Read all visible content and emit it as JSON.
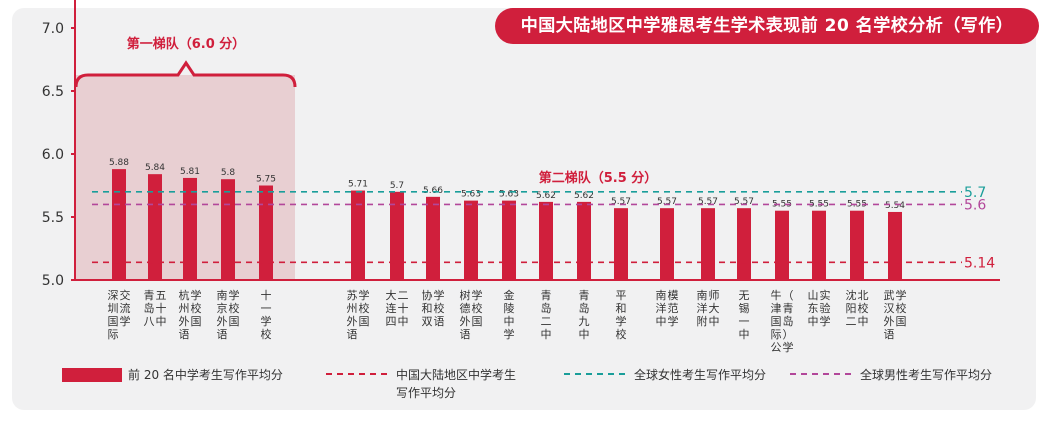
{
  "title": "中国大陆地区中学雅思考生学术表现前 20 名学校分析（写作）",
  "tier1_label": "第一梯队（6.0 分）",
  "tier2_label": "第二梯队（5.5 分）",
  "colors": {
    "bar": "#d01f3c",
    "tier1_fill": "#e6c9cc",
    "accent": "#d01f3c",
    "mainland": "#d01f3c",
    "female": "#1a9e9a",
    "male": "#b2479a",
    "axis": "#d01f3c"
  },
  "chart_data": {
    "type": "bar",
    "ylim": [
      5.0,
      8.0
    ],
    "yticks": [
      "5.0",
      "5.5",
      "6.0",
      "6.5",
      "7.0",
      "7.5",
      "8.0"
    ],
    "categories": [
      "深交圳流国学际",
      "青五岛十八中",
      "杭学州校外国语",
      "南学京校外国语",
      "十一学校",
      "苏学州校外国语",
      "大二连十四中",
      "协学和校双语",
      "树学德校外国语",
      "金陵中学",
      "青岛二中",
      "青岛九中",
      "平和学校",
      "南模洋范中学",
      "南师洋大附中",
      "无锡一中",
      "牛（津青国岛际）公学",
      "山实东验中学",
      "沈北阳校二中",
      "武学汉校外国语"
    ],
    "series": [
      {
        "values": [
          5.88,
          5.84,
          5.81,
          5.8,
          5.75,
          5.71,
          5.7,
          5.66,
          5.63,
          5.63,
          5.62,
          5.62,
          5.57,
          5.57,
          5.57,
          5.57,
          5.55,
          5.55,
          5.55,
          5.54
        ]
      }
    ],
    "value_labels": [
      "5.88",
      "5.84",
      "5.81",
      "5.8",
      "5.75",
      "5.71",
      "5.7",
      "5.66",
      "5.63",
      "5.63",
      "5.62",
      "5.62",
      "5.57",
      "5.57",
      "5.57",
      "5.57",
      "5.55",
      "5.55",
      "5.55",
      "5.54"
    ],
    "reference_lines": [
      {
        "name": "中国大陆地区中学考生写作平均分",
        "value": 5.14,
        "label": "5.14",
        "color": "#d01f3c"
      },
      {
        "name": "全球女性考生写作平均分",
        "value": 5.7,
        "label": "5.7",
        "color": "#1a9e9a"
      },
      {
        "name": "全球男性考生写作平均分",
        "value": 5.6,
        "label": "5.6",
        "color": "#b2479a"
      }
    ]
  },
  "legend": {
    "bars": "前 20 名中学考生写作平均分",
    "mainland_line1": "中国大陆地区中学考生",
    "mainland_line2": "写作平均分",
    "female": "全球女性考生写作平均分",
    "male": "全球男性考生写作平均分"
  }
}
